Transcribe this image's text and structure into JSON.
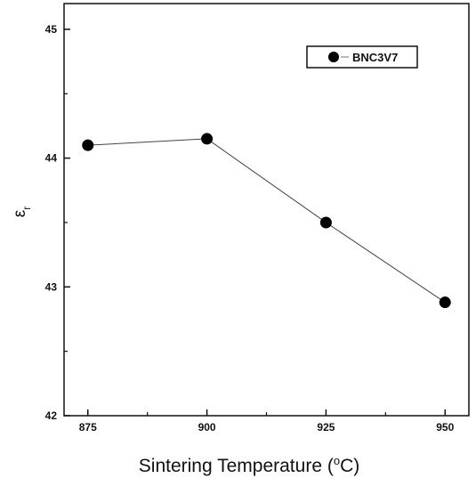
{
  "chart_data": {
    "type": "line",
    "title": "",
    "xlabel": "Sintering Temperature (°C)",
    "xlabel_parts": {
      "prefix": "Sintering Temperature (",
      "superscript": "o",
      "suffix": "C)"
    },
    "ylabel": "εr",
    "ylabel_parts": {
      "symbol": "ε",
      "subscript": "r"
    },
    "xlim": [
      870,
      955
    ],
    "ylim": [
      42,
      45.2
    ],
    "xticks": [
      875,
      900,
      925,
      950
    ],
    "xtick_labels": [
      "875",
      "900",
      "925",
      "950"
    ],
    "yticks": [
      42,
      43,
      44,
      45
    ],
    "ytick_labels": [
      "42",
      "43",
      "44",
      "45"
    ],
    "grid": false,
    "legend_position": "top-right",
    "series": [
      {
        "name": "BNC3V7",
        "marker": "circle",
        "color": "#000000",
        "x": [
          875,
          900,
          925,
          950
        ],
        "y": [
          44.1,
          44.15,
          43.5,
          42.88
        ]
      }
    ]
  }
}
